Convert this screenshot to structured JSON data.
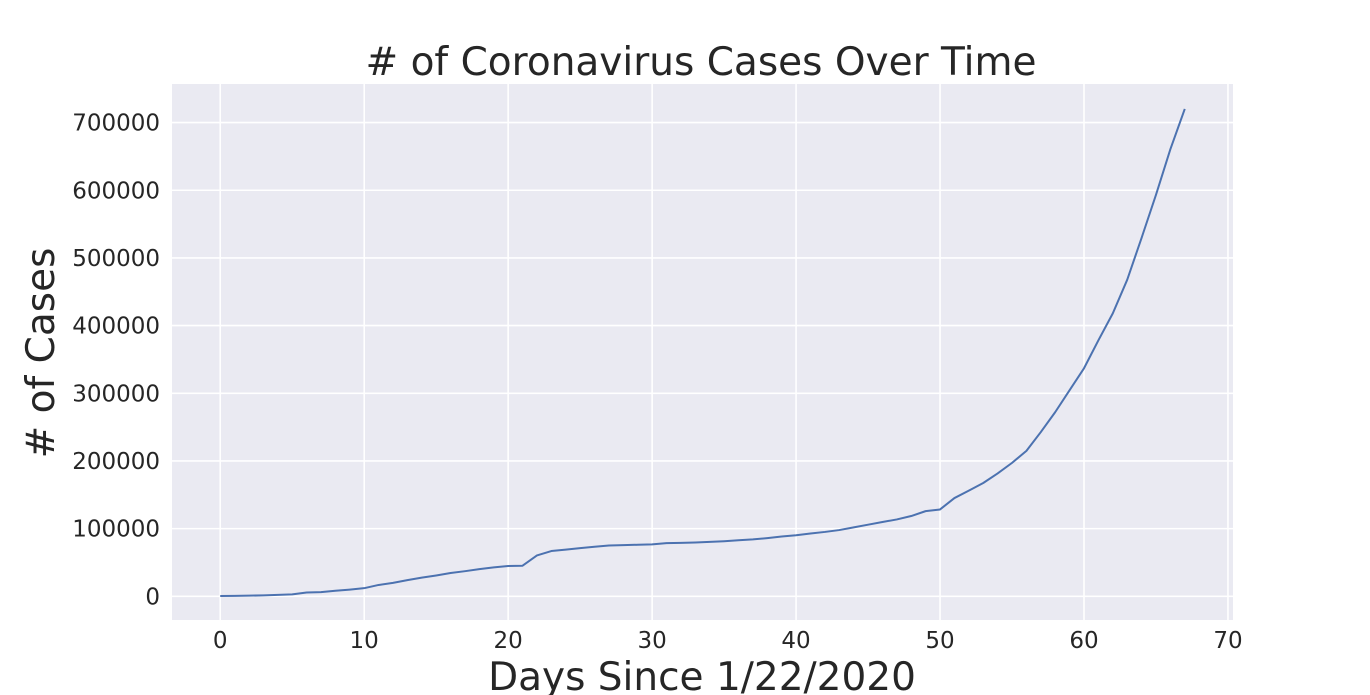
{
  "chart_data": {
    "type": "line",
    "title": "# of Coronavirus Cases Over Time",
    "xlabel": "Days Since 1/22/2020",
    "ylabel": "# of Cases",
    "xlim": [
      -3.35,
      70.35
    ],
    "ylim": [
      -35000,
      757000
    ],
    "xticks": [
      0,
      10,
      20,
      30,
      40,
      50,
      60,
      70
    ],
    "yticks": [
      0,
      100000,
      200000,
      300000,
      400000,
      500000,
      600000,
      700000
    ],
    "grid": true,
    "background_color": "#eaeaf2",
    "grid_color": "#ffffff",
    "series": [
      {
        "color": "#4c72b0",
        "x": [
          0,
          1,
          2,
          3,
          4,
          5,
          6,
          7,
          8,
          9,
          10,
          11,
          12,
          13,
          14,
          15,
          16,
          17,
          18,
          19,
          20,
          21,
          22,
          23,
          24,
          25,
          26,
          27,
          28,
          29,
          30,
          31,
          32,
          33,
          34,
          35,
          36,
          37,
          38,
          39,
          40,
          41,
          42,
          43,
          44,
          45,
          46,
          47,
          48,
          49,
          50,
          51,
          52,
          53,
          54,
          55,
          56,
          57,
          58,
          59,
          60,
          61,
          62,
          63,
          64,
          65,
          66,
          67
        ],
        "y": [
          555,
          654,
          941,
          1434,
          2118,
          2927,
          5578,
          6166,
          8234,
          9927,
          12038,
          16787,
          19881,
          23892,
          27635,
          30794,
          34391,
          37120,
          40150,
          42762,
          44802,
          45221,
          60368,
          66885,
          69030,
          71224,
          73258,
          75136,
          75639,
          76197,
          76819,
          78572,
          78958,
          79561,
          80406,
          81388,
          82746,
          84112,
          86011,
          88369,
          90306,
          92840,
          95120,
          97886,
          101801,
          105847,
          109821,
          113590,
          118620,
          125875,
          128343,
          145193,
          156097,
          167449,
          181546,
          197168,
          214915,
          242713,
          272167,
          304528,
          336953,
          378235,
          418045,
          467653,
          529591,
          593291,
          660706,
          720117
        ]
      }
    ]
  }
}
